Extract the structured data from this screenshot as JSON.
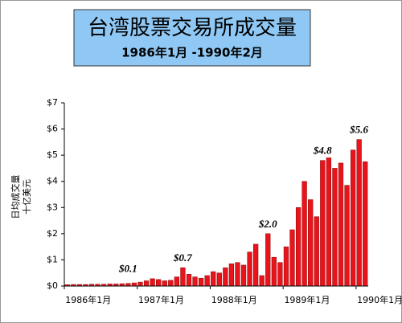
{
  "chart_data": {
    "type": "bar",
    "title": "台湾股票交易所成交量",
    "subtitle": "1986年1月 -1990年2月",
    "y_label": [
      "日均成交量",
      "十亿美元"
    ],
    "categories": [
      "1986年1月",
      null,
      null,
      null,
      null,
      null,
      null,
      null,
      null,
      null,
      null,
      null,
      "1987年1月",
      null,
      null,
      null,
      null,
      null,
      null,
      null,
      null,
      null,
      null,
      null,
      "1988年1月",
      null,
      null,
      null,
      null,
      null,
      null,
      null,
      null,
      null,
      null,
      null,
      "1989年1月",
      null,
      null,
      null,
      null,
      null,
      null,
      null,
      null,
      null,
      null,
      null,
      "1990年1月",
      null
    ],
    "values": [
      0.05,
      0.06,
      0.06,
      0.06,
      0.07,
      0.07,
      0.07,
      0.08,
      0.08,
      0.09,
      0.1,
      0.12,
      0.15,
      0.2,
      0.28,
      0.25,
      0.2,
      0.22,
      0.35,
      0.7,
      0.45,
      0.35,
      0.3,
      0.4,
      0.55,
      0.5,
      0.7,
      0.85,
      0.9,
      0.8,
      1.3,
      1.6,
      0.4,
      2.0,
      1.1,
      0.9,
      1.5,
      2.15,
      3.0,
      4.0,
      3.3,
      2.65,
      4.8,
      4.9,
      4.5,
      4.7,
      3.85,
      5.2,
      5.6,
      4.75
    ],
    "value_labels": [
      null,
      null,
      null,
      null,
      null,
      null,
      null,
      null,
      null,
      null,
      "$0.1",
      null,
      null,
      null,
      null,
      null,
      null,
      null,
      null,
      "$0.7",
      null,
      null,
      null,
      null,
      null,
      null,
      null,
      null,
      null,
      null,
      null,
      null,
      null,
      "$2.0",
      null,
      null,
      null,
      null,
      null,
      null,
      null,
      null,
      "$4.8",
      null,
      null,
      null,
      null,
      null,
      "$5.6",
      null
    ],
    "color": "#e8141c",
    "ylim": [
      0,
      7
    ],
    "yticks": [
      {
        "value": 0,
        "label": "$0"
      },
      {
        "value": 1,
        "label": "$1"
      },
      {
        "value": 2,
        "label": "$2"
      },
      {
        "value": 3,
        "label": "$3"
      },
      {
        "value": 4,
        "label": "$4"
      },
      {
        "value": 5,
        "label": "$5"
      },
      {
        "value": 6,
        "label": "$6"
      },
      {
        "value": 7,
        "label": "$7"
      }
    ]
  }
}
